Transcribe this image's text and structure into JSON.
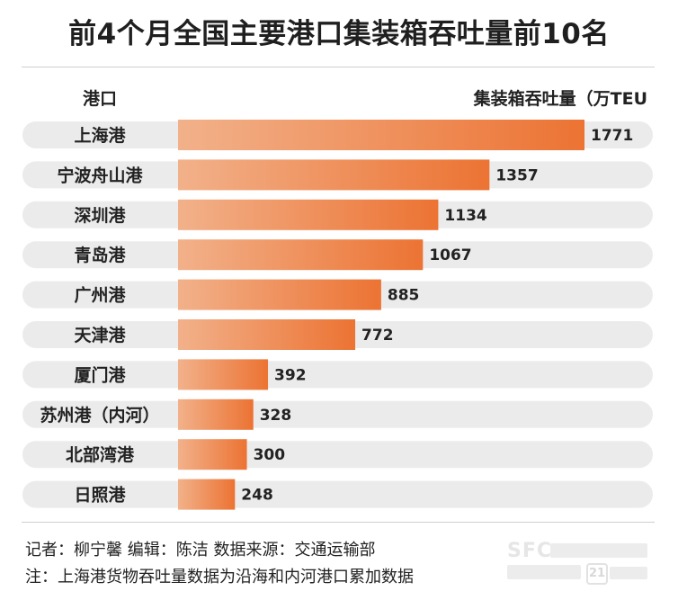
{
  "title": "前4个月全国主要港口集装箱吞吐量前10名",
  "header": {
    "left_label": "港口",
    "right_label": "集装箱吞吐量（万TEU"
  },
  "chart_data": {
    "type": "bar",
    "orientation": "horizontal",
    "title": "前4个月全国主要港口集装箱吞吐量前10名",
    "xlabel": "集装箱吞吐量（万TEU",
    "ylabel": "港口",
    "categories": [
      "上海港",
      "宁波舟山港",
      "深圳港",
      "青岛港",
      "广州港",
      "天津港",
      "厦门港",
      "苏州港（内河）",
      "北部湾港",
      "日照港"
    ],
    "values": [
      1771,
      1357,
      1134,
      1067,
      885,
      772,
      392,
      328,
      300,
      248
    ],
    "xlim": [
      0,
      1771
    ],
    "grid": false,
    "legend": "none",
    "colors": {
      "bar_start": "#f2b18a",
      "bar_end": "#ec7333",
      "track": "#ebebeb",
      "text": "#222222"
    }
  },
  "footer": {
    "credits": "记者：柳宁馨   编辑：陈洁   数据来源：交通运输部",
    "note": "注：上海港货物吞吐量数据为沿海和内河港口累加数据"
  },
  "logo": {
    "brand": "SFC",
    "badge": "21"
  }
}
